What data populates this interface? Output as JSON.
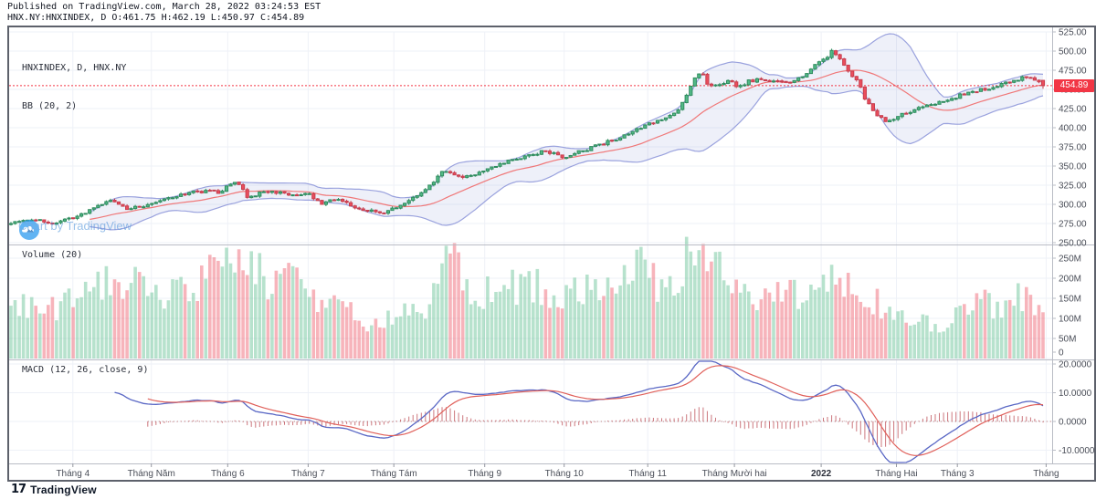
{
  "header": {
    "line1": "Published on TradingView.com, March 28, 2022 03:24:53 EST",
    "line2": "HNX.NY:HNXINDEX, D O:461.75 H:462.19 L:450.97 C:454.89"
  },
  "panes": {
    "main_legend_line1": "HNXINDEX, D, HNX.NY",
    "main_legend_line2": "BB (20, 2)",
    "volume_legend": "Volume (20)",
    "macd_legend": "MACD (12, 26, close, 9)"
  },
  "price_badge": "454.89",
  "watermark": {
    "text": "Chart by TradingView"
  },
  "footer": {
    "brand": "TradingView",
    "mark": "17"
  },
  "colors": {
    "up": "#53b987",
    "up_border": "#2f8c5e",
    "down": "#eb4d5c",
    "down_border": "#c63f4f",
    "bb_band": "#8a93d8",
    "bb_fill": "rgba(126,136,212,0.13)",
    "bb_basis": "#ef6a6a",
    "macd_line": "#5a68c5",
    "signal_line": "#e0605a",
    "hist": "#c0565e",
    "last_price": "#f23645",
    "grid": "#eef1f7",
    "divider": "#b9bcc5",
    "axis_text": "#4a4e58"
  },
  "chart_data": {
    "type": "candlestick",
    "title": "HNXINDEX, D, HNX.NY with BB(20,2), Volume(20), MACD(12,26,close,9)",
    "bars": 250,
    "noise_seed": 7,
    "close_noise": 2.2,
    "wick_noise": 2.4,
    "last_price": 454.89,
    "last_bar_ohlc": {
      "o": 461.75,
      "h": 462.19,
      "l": 450.97,
      "c": 454.89
    },
    "price_ylim": [
      250,
      525
    ],
    "price_ticks": [
      {
        "v": 525,
        "label": "525.00"
      },
      {
        "v": 500,
        "label": "500.00"
      },
      {
        "v": 475,
        "label": "475.00"
      },
      {
        "v": 450,
        "label": "450.00"
      },
      {
        "v": 425,
        "label": "425.00"
      },
      {
        "v": 400,
        "label": "400.00"
      },
      {
        "v": 375,
        "label": "375.00"
      },
      {
        "v": 350,
        "label": "350.00"
      },
      {
        "v": 325,
        "label": "325.00"
      },
      {
        "v": 300,
        "label": "300.00"
      },
      {
        "v": 275,
        "label": "275.00"
      },
      {
        "v": 250,
        "label": "250.00"
      }
    ],
    "volume_ticks": [
      {
        "v": 250,
        "label": "250M"
      },
      {
        "v": 200,
        "label": "200M"
      },
      {
        "v": 150,
        "label": "150M"
      },
      {
        "v": 100,
        "label": "100M"
      },
      {
        "v": 50,
        "label": "50M"
      },
      {
        "v": 0,
        "label": "0"
      }
    ],
    "macd_ylim": [
      -13.8,
      21.5
    ],
    "macd_ticks": [
      {
        "v": 20,
        "label": "20.0000"
      },
      {
        "v": 10,
        "label": "10.0000"
      },
      {
        "v": 0,
        "label": "0.0000"
      },
      {
        "v": -10,
        "label": "-10.0000"
      }
    ],
    "time_ticks": [
      {
        "t": 0.06,
        "label": "Tháng 4"
      },
      {
        "t": 0.136,
        "label": "Tháng Năm"
      },
      {
        "t": 0.21,
        "label": "Tháng 6"
      },
      {
        "t": 0.288,
        "label": "Tháng 7"
      },
      {
        "t": 0.371,
        "label": "Tháng Tám"
      },
      {
        "t": 0.459,
        "label": "Tháng 9"
      },
      {
        "t": 0.536,
        "label": "Tháng 10"
      },
      {
        "t": 0.617,
        "label": "Tháng 11"
      },
      {
        "t": 0.701,
        "label": "Tháng Mười hai"
      },
      {
        "t": 0.785,
        "label": "2022",
        "strong": true
      },
      {
        "t": 0.858,
        "label": "Tháng Hai"
      },
      {
        "t": 0.917,
        "label": "Tháng 3"
      },
      {
        "t": 1.003,
        "label": "Tháng"
      }
    ],
    "price_anchors": [
      [
        0.0,
        277
      ],
      [
        0.018,
        281
      ],
      [
        0.04,
        275
      ],
      [
        0.062,
        282
      ],
      [
        0.084,
        297
      ],
      [
        0.097,
        305
      ],
      [
        0.114,
        294
      ],
      [
        0.136,
        301
      ],
      [
        0.158,
        310
      ],
      [
        0.18,
        317
      ],
      [
        0.202,
        316
      ],
      [
        0.218,
        330
      ],
      [
        0.23,
        309
      ],
      [
        0.248,
        318
      ],
      [
        0.268,
        313
      ],
      [
        0.289,
        312
      ],
      [
        0.301,
        299
      ],
      [
        0.312,
        308
      ],
      [
        0.33,
        299
      ],
      [
        0.343,
        293
      ],
      [
        0.356,
        288
      ],
      [
        0.374,
        297
      ],
      [
        0.396,
        312
      ],
      [
        0.42,
        344
      ],
      [
        0.435,
        334
      ],
      [
        0.453,
        341
      ],
      [
        0.475,
        353
      ],
      [
        0.497,
        362
      ],
      [
        0.517,
        370
      ],
      [
        0.535,
        361
      ],
      [
        0.559,
        372
      ],
      [
        0.582,
        383
      ],
      [
        0.607,
        398
      ],
      [
        0.626,
        409
      ],
      [
        0.644,
        420
      ],
      [
        0.653,
        436
      ],
      [
        0.661,
        462
      ],
      [
        0.668,
        474
      ],
      [
        0.677,
        452
      ],
      [
        0.686,
        455
      ],
      [
        0.695,
        462
      ],
      [
        0.704,
        452
      ],
      [
        0.714,
        460
      ],
      [
        0.726,
        465
      ],
      [
        0.734,
        458
      ],
      [
        0.746,
        462
      ],
      [
        0.758,
        460
      ],
      [
        0.77,
        468
      ],
      [
        0.778,
        480
      ],
      [
        0.79,
        492
      ],
      [
        0.797,
        501
      ],
      [
        0.804,
        488
      ],
      [
        0.811,
        472
      ],
      [
        0.82,
        463
      ],
      [
        0.827,
        440
      ],
      [
        0.834,
        425
      ],
      [
        0.843,
        412
      ],
      [
        0.851,
        408
      ],
      [
        0.862,
        417
      ],
      [
        0.873,
        422
      ],
      [
        0.884,
        427
      ],
      [
        0.895,
        431
      ],
      [
        0.906,
        437
      ],
      [
        0.917,
        441
      ],
      [
        0.928,
        446
      ],
      [
        0.939,
        450
      ],
      [
        0.95,
        452
      ],
      [
        0.96,
        457
      ],
      [
        0.969,
        461
      ],
      [
        0.978,
        464
      ],
      [
        0.987,
        468
      ],
      [
        0.994,
        462
      ],
      [
        1.0,
        455
      ]
    ],
    "volume_anchors": [
      [
        0.0,
        130
      ],
      [
        0.035,
        120
      ],
      [
        0.07,
        150
      ],
      [
        0.114,
        210
      ],
      [
        0.141,
        150
      ],
      [
        0.176,
        165
      ],
      [
        0.202,
        235
      ],
      [
        0.227,
        245
      ],
      [
        0.255,
        180
      ],
      [
        0.274,
        230
      ],
      [
        0.299,
        150
      ],
      [
        0.325,
        120
      ],
      [
        0.352,
        85
      ],
      [
        0.378,
        110
      ],
      [
        0.405,
        140
      ],
      [
        0.428,
        255
      ],
      [
        0.449,
        160
      ],
      [
        0.475,
        170
      ],
      [
        0.501,
        185
      ],
      [
        0.528,
        160
      ],
      [
        0.554,
        170
      ],
      [
        0.581,
        185
      ],
      [
        0.607,
        225
      ],
      [
        0.633,
        170
      ],
      [
        0.657,
        245
      ],
      [
        0.675,
        268
      ],
      [
        0.695,
        180
      ],
      [
        0.721,
        150
      ],
      [
        0.748,
        170
      ],
      [
        0.774,
        160
      ],
      [
        0.792,
        190
      ],
      [
        0.814,
        165
      ],
      [
        0.836,
        150
      ],
      [
        0.858,
        110
      ],
      [
        0.88,
        90
      ],
      [
        0.901,
        75
      ],
      [
        0.923,
        120
      ],
      [
        0.941,
        155
      ],
      [
        0.959,
        120
      ],
      [
        0.976,
        150
      ],
      [
        0.994,
        135
      ]
    ],
    "indicators": {
      "bb_period": 20,
      "bb_mult": 2,
      "macd_fast": 12,
      "macd_slow": 26,
      "macd_signal": 9,
      "volume_ma": 20
    }
  }
}
